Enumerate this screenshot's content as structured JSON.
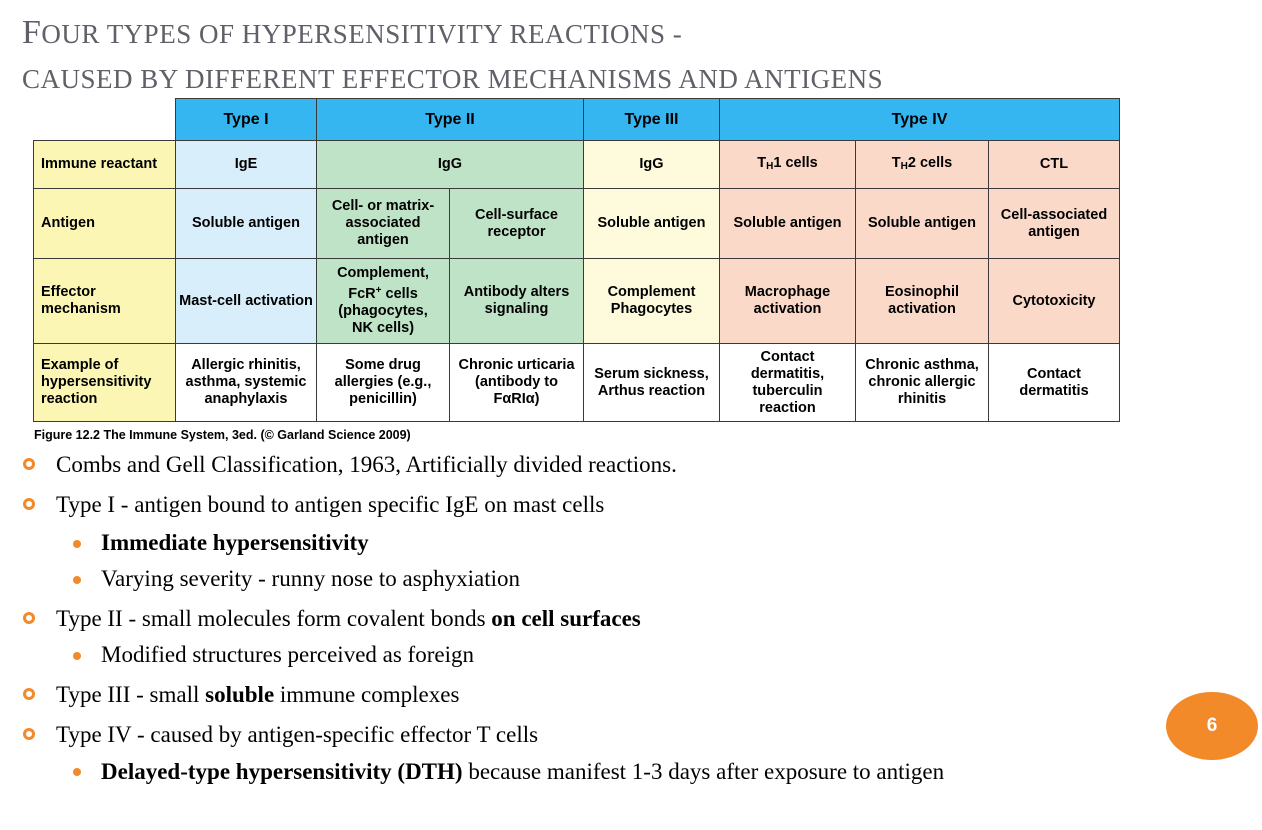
{
  "title": {
    "line1_first_letter": "F",
    "line1_rest": "OUR TYPES OF HYPERSENSITIVITY REACTIONS -",
    "line2": "CAUSED BY DIFFERENT EFFECTOR MECHANISMS AND ANTIGENS"
  },
  "table": {
    "headers": [
      "Type I",
      "Type II",
      "Type III",
      "Type IV"
    ],
    "row_labels": {
      "immune_reactant": "Immune reactant",
      "antigen": "Antigen",
      "effector": "Effector mechanism",
      "example": "Example of hypersensitivity reaction"
    },
    "immune_reactant": {
      "t1": "IgE",
      "t2": "IgG",
      "t3": "IgG",
      "t4a_main": "T",
      "t4a_sub": "H",
      "t4a_rest": "1 cells",
      "t4b_main": "T",
      "t4b_sub": "H",
      "t4b_rest": "2 cells",
      "t4c": "CTL"
    },
    "antigen": {
      "t1": "Soluble antigen",
      "t2a": "Cell- or matrix-associated antigen",
      "t2b": "Cell-surface receptor",
      "t3": "Soluble antigen",
      "t4a": "Soluble antigen",
      "t4b": "Soluble antigen",
      "t4c": "Cell-associated antigen"
    },
    "effector": {
      "t1": "Mast-cell activation",
      "t2a_l1": "Complement,",
      "t2a_l2_main": "FcR",
      "t2a_l2_sup": "+",
      "t2a_l2_rest": " cells",
      "t2a_l3": "(phagocytes,",
      "t2a_l4": "NK cells)",
      "t2b": "Antibody alters signaling",
      "t3_l1": "Complement",
      "t3_l2": "Phagocytes",
      "t4a": "Macrophage activation",
      "t4b": "Eosinophil activation",
      "t4c": "Cytotoxicity"
    },
    "example": {
      "t1": "Allergic rhinitis, asthma, systemic anaphylaxis",
      "t2a": "Some drug allergies (e.g., penicillin)",
      "t2b_l1": "Chronic urticaria",
      "t2b_l2": "(antibody to",
      "t2b_l3": "FαRIα)",
      "t3": "Serum sickness, Arthus reaction",
      "t4a": "Contact dermatitis, tuberculin reaction",
      "t4b": "Chronic asthma, chronic allergic rhinitis",
      "t4c": "Contact dermatitis"
    }
  },
  "caption": "Figure 12.2 The Immune System, 3ed. (© Garland Science 2009)",
  "bullets": {
    "b1": "Combs and Gell Classification, 1963, Artificially divided reactions.",
    "b2": "Type I - antigen bound to antigen specific IgE on mast cells",
    "b2a_bold": "Immediate hypersensitivity",
    "b2b": "Varying severity - runny nose to asphyxiation",
    "b3_pre": "Type II - small molecules form covalent bonds ",
    "b3_bold": "on cell surfaces",
    "b3a": "Modified structures perceived as foreign",
    "b4_pre": "Type III - small ",
    "b4_bold": "soluble",
    "b4_post": " immune complexes",
    "b5": "Type IV - caused by antigen-specific effector T cells",
    "b5a_bold": "Delayed-type hypersensitivity (DTH)",
    "b5a_post": "  because manifest 1-3 days after exposure to antigen"
  },
  "page_number": "6",
  "colors": {
    "accent": "#f28a2a",
    "header": "#35b6f0",
    "type1": "#d8eefa",
    "type2": "#bfe3c7",
    "type3": "#fdfbdc",
    "type4": "#fbd9c8",
    "row_label": "#fbf6b4"
  }
}
